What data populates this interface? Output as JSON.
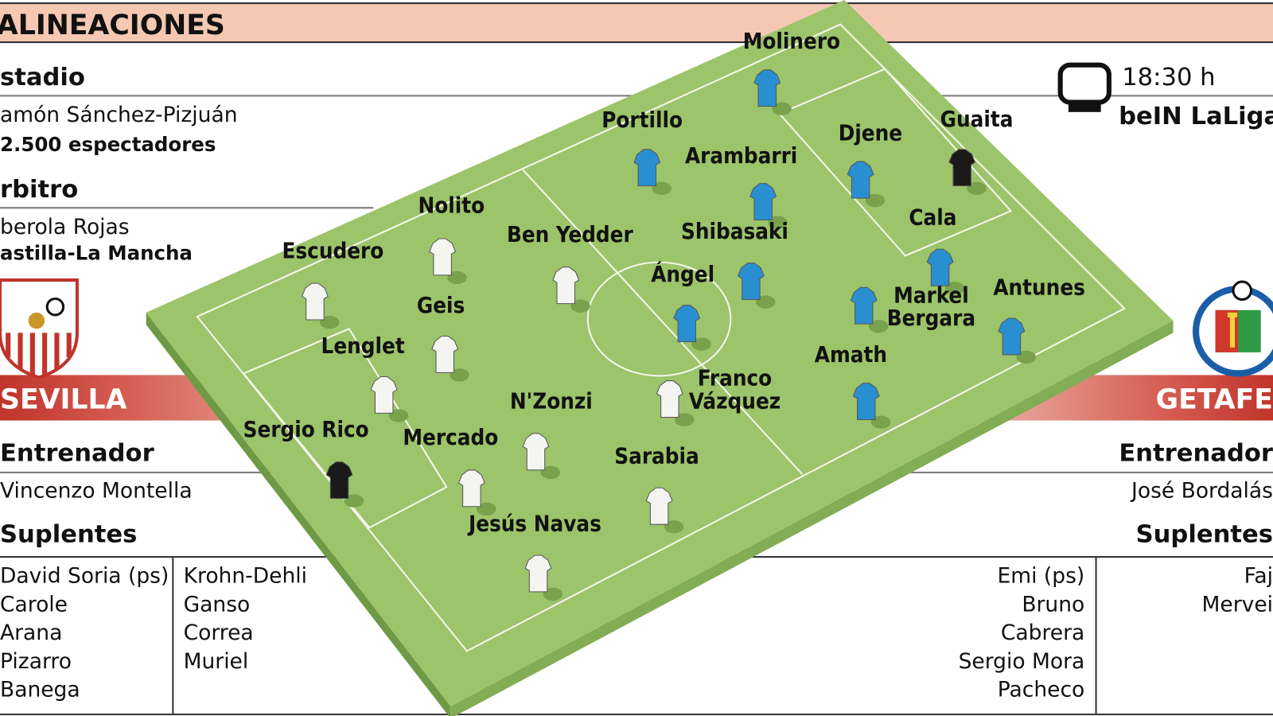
{
  "header": {
    "title": "ALINEACIONES"
  },
  "match": {
    "stadium_label": "stadio",
    "stadium": "amón Sánchez-Pizjuán",
    "attendance": "2.500 espectadores",
    "referee_label": "rbitro",
    "referee": "berola Rojas",
    "referee_region": "astilla-La Mancha",
    "time": "18:30 h",
    "tv": "beIN LaLiga"
  },
  "home": {
    "team": "SEVILLA",
    "coach_label": "Entrenador",
    "coach": "Vincenzo Montella",
    "subs_label": "Suplentes",
    "subs": [
      [
        "David Soria (ps)",
        "Carole",
        "Arana",
        "Pizarro",
        "Banega"
      ],
      [
        "Krohn-Dehli",
        "Ganso",
        "Correa",
        "Muriel"
      ]
    ],
    "players": [
      [
        "Escudero"
      ],
      [
        "Nolito"
      ],
      [
        "Ben Yedder"
      ],
      [
        "Geis"
      ],
      [
        "Lenglet"
      ],
      [
        "Franco",
        "Vázquez"
      ],
      [
        "N'Zonzi"
      ],
      [
        "Sergio Rico"
      ],
      [
        "Mercado"
      ],
      [
        "Sarabia"
      ],
      [
        "Jesús Navas"
      ]
    ]
  },
  "away": {
    "team": "GETAFE",
    "coach_label": "Entrenador",
    "coach": "José Bordalás",
    "subs_label": "Suplentes",
    "subs": [
      [
        "Emi (ps)",
        "Bruno",
        "Cabrera",
        "Sergio Mora",
        "Pacheco"
      ],
      [
        "Faj",
        "Mervei"
      ]
    ],
    "players": [
      [
        "Molinero"
      ],
      [
        "Portillo"
      ],
      [
        "Arambarri"
      ],
      [
        "Djene"
      ],
      [
        "Guaita"
      ],
      [
        "Shibasaki"
      ],
      [
        "Cala"
      ],
      [
        "Ángel"
      ],
      [
        "Markel",
        "Bergara"
      ],
      [
        "Antunes"
      ],
      [
        "Amath"
      ]
    ]
  }
}
